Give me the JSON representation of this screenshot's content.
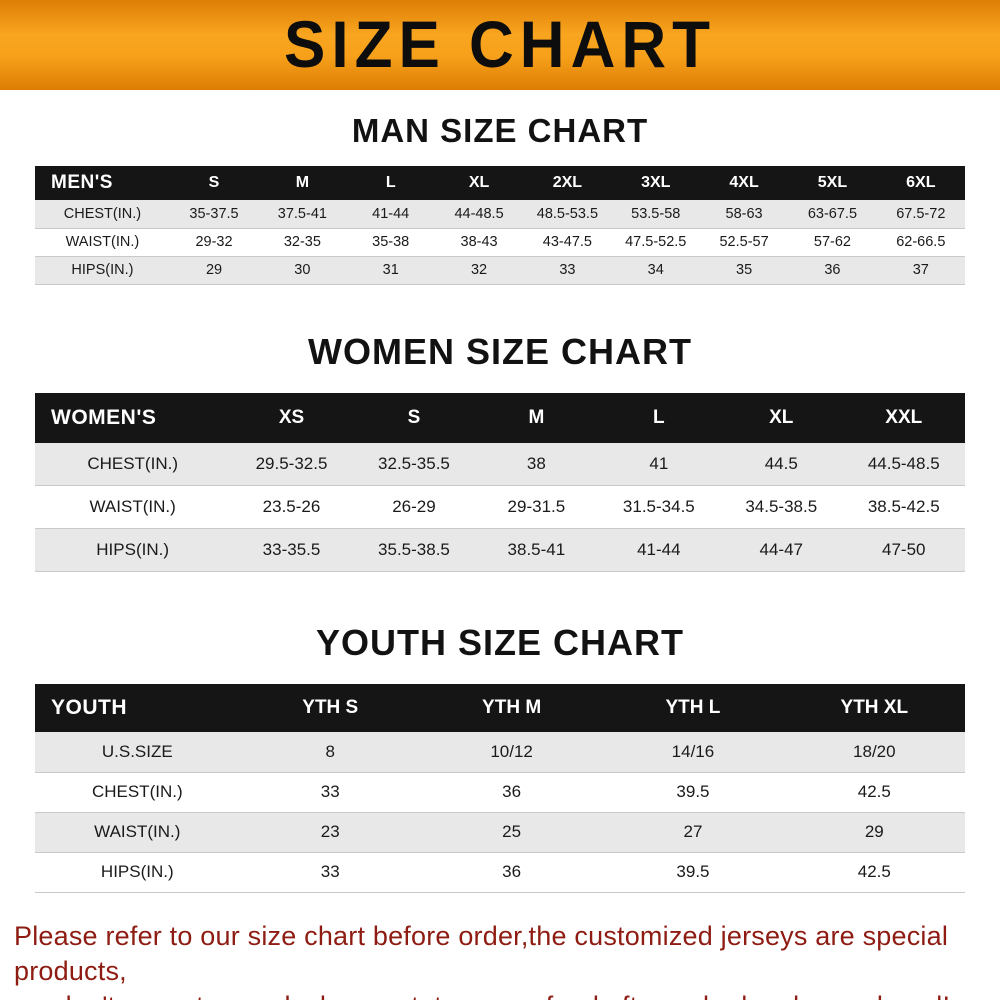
{
  "banner": {
    "title": "SIZE CHART"
  },
  "chart_data": [
    {
      "type": "table",
      "title": "MAN SIZE CHART",
      "columns": [
        "MEN'S",
        "S",
        "M",
        "L",
        "XL",
        "2XL",
        "3XL",
        "4XL",
        "5XL",
        "6XL"
      ],
      "rows": [
        [
          "CHEST(IN.)",
          "35-37.5",
          "37.5-41",
          "41-44",
          "44-48.5",
          "48.5-53.5",
          "53.5-58",
          "58-63",
          "63-67.5",
          "67.5-72"
        ],
        [
          "WAIST(IN.)",
          "29-32",
          "32-35",
          "35-38",
          "38-43",
          "43-47.5",
          "47.5-52.5",
          "52.5-57",
          "57-62",
          "62-66.5"
        ],
        [
          "HIPS(IN.)",
          "29",
          "30",
          "31",
          "32",
          "33",
          "34",
          "35",
          "36",
          "37"
        ]
      ]
    },
    {
      "type": "table",
      "title": "WOMEN SIZE CHART",
      "columns": [
        "WOMEN'S",
        "XS",
        "S",
        "M",
        "L",
        "XL",
        "XXL"
      ],
      "rows": [
        [
          "CHEST(IN.)",
          "29.5-32.5",
          "32.5-35.5",
          "38",
          "41",
          "44.5",
          "44.5-48.5"
        ],
        [
          "WAIST(IN.)",
          "23.5-26",
          "26-29",
          "29-31.5",
          "31.5-34.5",
          "34.5-38.5",
          "38.5-42.5"
        ],
        [
          "HIPS(IN.)",
          "33-35.5",
          "35.5-38.5",
          "38.5-41",
          "41-44",
          "44-47",
          "47-50"
        ]
      ]
    },
    {
      "type": "table",
      "title": "YOUTH SIZE CHART",
      "columns": [
        "YOUTH",
        "YTH S",
        "YTH M",
        "YTH L",
        "YTH XL"
      ],
      "rows": [
        [
          "U.S.SIZE",
          "8",
          "10/12",
          "14/16",
          "18/20"
        ],
        [
          "CHEST(IN.)",
          "33",
          "36",
          "39.5",
          "42.5"
        ],
        [
          "WAIST(IN.)",
          "23",
          "25",
          "27",
          "29"
        ],
        [
          "HIPS(IN.)",
          "33",
          "36",
          "39.5",
          "42.5"
        ]
      ]
    }
  ],
  "disclaimer": {
    "line1": "Please refer to our size chart before order,the customized jerseys are special products,",
    "line2": "we don't accept cancel, change, teturn or refund after order has been placed!"
  },
  "colors": {
    "banner_orange": "#f7a11b",
    "banner_orange_dark": "#dd7e05",
    "table_header_black": "#151515",
    "row_stripe_gray": "#e8e8e8",
    "disclaimer_red": "#8e1c12"
  }
}
